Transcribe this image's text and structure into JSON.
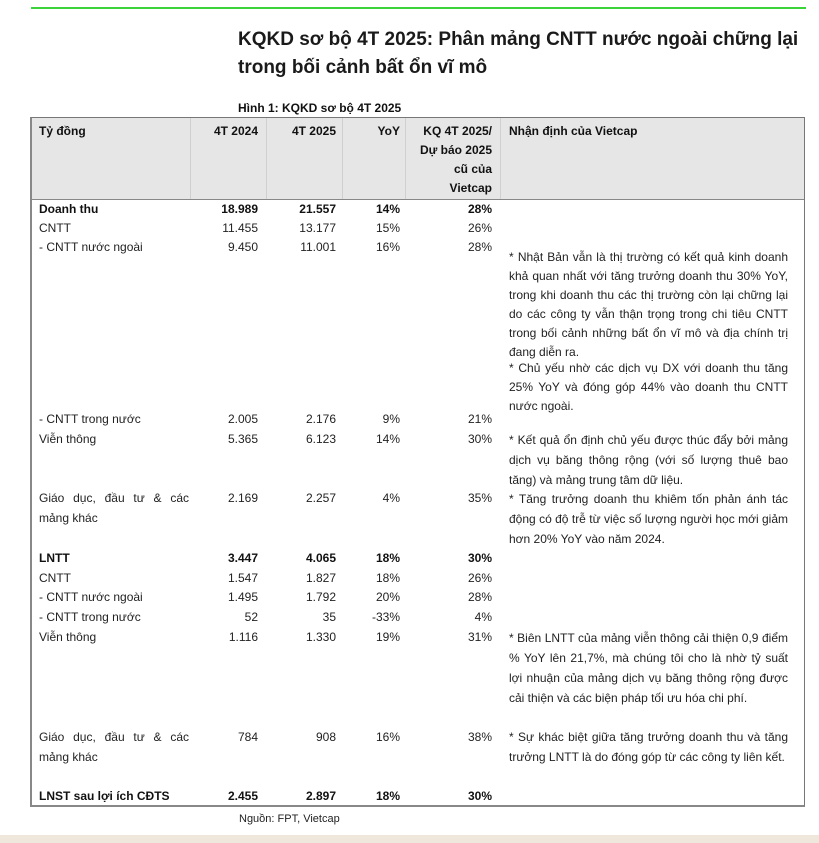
{
  "title": "KQKD sơ bộ 4T 2025: Phân mảng CNTT nước ngoài chững lại trong bối cảnh bất ổn vĩ mô",
  "figure_caption": "Hình 1: KQKD sơ bộ 4T 2025",
  "accent_color": "#3ad43a",
  "headers": [
    "Tỷ đồng",
    "4T 2024",
    "4T 2025",
    "YoY",
    "KQ 4T 2025/ Dự báo 2025 cũ của Vietcap",
    "Nhận định của Vietcap"
  ],
  "rows": [
    {
      "label": "Doanh thu",
      "v2024": "18.989",
      "v2025": "21.557",
      "yoy": "14%",
      "kq": "28%",
      "bold": true
    },
    {
      "label": "CNTT",
      "v2024": "11.455",
      "v2025": "13.177",
      "yoy": "15%",
      "kq": "26%"
    },
    {
      "label": " - CNTT nước ngoài",
      "v2024": "9.450",
      "v2025": "11.001",
      "yoy": "16%",
      "kq": "28%"
    },
    {
      "label": " - CNTT trong nước",
      "v2024": "2.005",
      "v2025": "2.176",
      "yoy": "9%",
      "kq": "21%"
    },
    {
      "label": "Viễn thông",
      "v2024": "5.365",
      "v2025": "6.123",
      "yoy": "14%",
      "kq": "30%"
    },
    {
      "label": "Giáo dục, đầu tư & các mảng khác",
      "v2024": "2.169",
      "v2025": "2.257",
      "yoy": "4%",
      "kq": "35%"
    },
    {
      "label": "LNTT",
      "v2024": "3.447",
      "v2025": "4.065",
      "yoy": "18%",
      "kq": "30%",
      "bold": true
    },
    {
      "label": "CNTT",
      "v2024": "1.547",
      "v2025": "1.827",
      "yoy": "18%",
      "kq": "26%"
    },
    {
      "label": " - CNTT nước ngoài",
      "v2024": "1.495",
      "v2025": "1.792",
      "yoy": "20%",
      "kq": "28%"
    },
    {
      "label": " - CNTT trong nước",
      "v2024": "52",
      "v2025": "35",
      "yoy": "-33%",
      "kq": "4%"
    },
    {
      "label": "Viễn thông",
      "v2024": "1.116",
      "v2025": "1.330",
      "yoy": "19%",
      "kq": "31%"
    },
    {
      "label": "Giáo dục, đầu tư & các mảng khác",
      "v2024": "784",
      "v2025": "908",
      "yoy": "16%",
      "kq": "38%"
    },
    {
      "label": "LNST sau lợi ích CĐTS",
      "v2024": "2.455",
      "v2025": "2.897",
      "yoy": "18%",
      "kq": "30%",
      "bold": true
    }
  ],
  "notes": [
    "* Nhật Bản vẫn là thị trường có kết quả kinh doanh khả quan nhất với tăng trưởng doanh thu 30% YoY, trong khi doanh thu các thị trường còn lại chững lại do các công ty vẫn thận trọng trong chi tiêu CNTT trong bối cảnh những bất ổn vĩ mô và địa chính trị đang diễn ra.",
    "* Chủ yếu nhờ các dịch vụ DX với doanh thu tăng 25% YoY và đóng góp 44% vào doanh thu CNTT nước ngoài.",
    "* Kết quả ổn định chủ yếu được thúc đẩy bởi mảng dịch vụ băng thông rộng (với số lượng thuê bao tăng) và mảng trung tâm dữ liệu.",
    "* Tăng trưởng doanh thu khiêm tốn phản ánh tác động có độ trễ từ việc số lượng người học mới giảm hơn 20% YoY vào năm 2024.",
    "* Biên LNTT của mảng viễn thông cải thiện 0,9 điểm % YoY lên 21,7%, mà chúng tôi cho là nhờ tỷ suất lợi nhuận của mảng dịch vụ băng thông rộng được cải thiện và các biện pháp tối ưu hóa chi phí.",
    "* Sự khác biệt giữa tăng trưởng doanh thu và tăng trưởng LNTT là do đóng góp từ các công ty liên kết."
  ],
  "source": "Nguồn: FPT, Vietcap"
}
